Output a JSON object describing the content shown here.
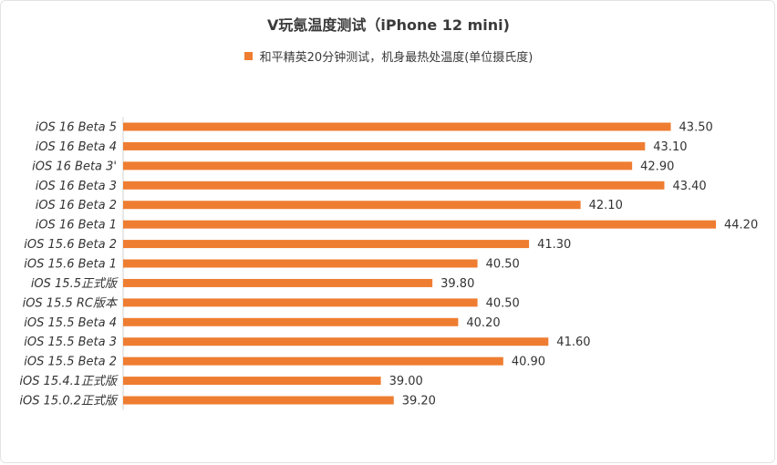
{
  "chart_data": {
    "type": "bar",
    "orientation": "horizontal",
    "title": "V玩氪温度测试（iPhone 12 mini)",
    "legend": {
      "position": "top",
      "entries": [
        "和平精英20分钟测试，机身最热处温度(单位摄氏度)"
      ]
    },
    "categories": [
      "iOS 16 Beta 5",
      "iOS 16 Beta 4",
      "iOS 16 Beta 3'",
      "iOS 16 Beta 3",
      "iOS 16 Beta 2",
      "iOS 16 Beta 1",
      "iOS 15.6 Beta 2",
      "iOS 15.6 Beta 1",
      "iOS 15.5正式版",
      "iOS 15.5 RC版本",
      "iOS 15.5 Beta 4",
      "iOS 15.5 Beta 3",
      "iOS 15.5 Beta 2",
      "iOS 15.4.1正式版",
      "iOS 15.0.2正式版"
    ],
    "series": [
      {
        "name": "和平精英20分钟测试，机身最热处温度(单位摄氏度)",
        "values": [
          43.5,
          43.1,
          42.9,
          43.4,
          42.1,
          44.2,
          41.3,
          40.5,
          39.8,
          40.5,
          40.2,
          41.6,
          40.9,
          39.0,
          39.2
        ],
        "labels": [
          "43.50",
          "43.10",
          "42.90",
          "43.40",
          "42.10",
          "44.20",
          "41.30",
          "40.50",
          "39.80",
          "40.50",
          "40.20",
          "41.60",
          "40.90",
          "39.00",
          "39.20"
        ]
      }
    ],
    "xlim": [
      35,
      44.2
    ],
    "grid": false,
    "color": "#ef7d31"
  }
}
